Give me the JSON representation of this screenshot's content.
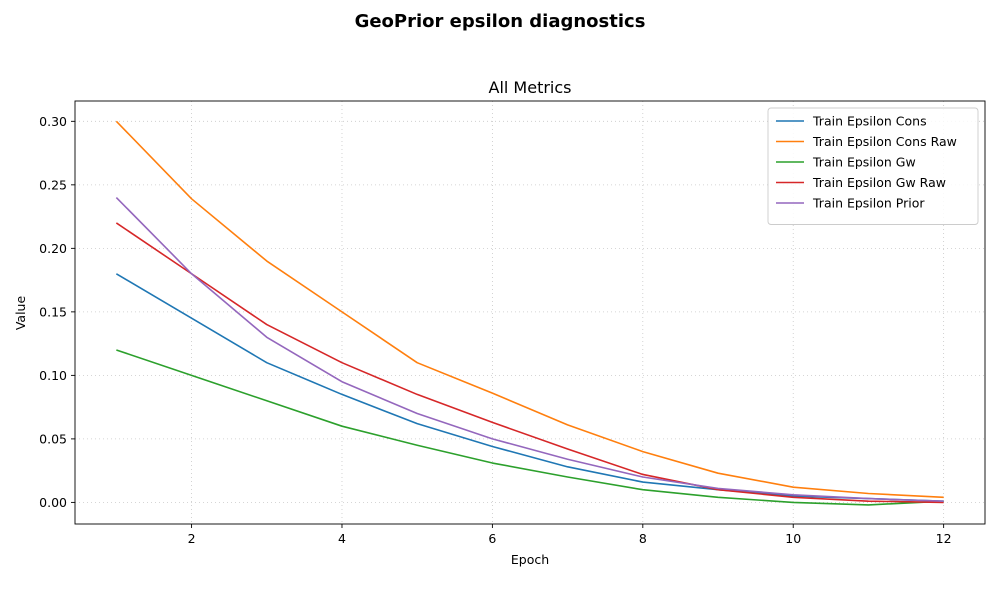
{
  "figure": {
    "suptitle": "GeoPrior epsilon diagnostics"
  },
  "chart_data": {
    "type": "line",
    "title": "All Metrics",
    "xlabel": "Epoch",
    "ylabel": "Value",
    "xlim": [
      0.45,
      12.55
    ],
    "ylim": [
      -0.017,
      0.316
    ],
    "xticks": [
      2,
      4,
      6,
      8,
      10,
      12
    ],
    "xtick_labels": [
      "2",
      "4",
      "6",
      "8",
      "10",
      "12"
    ],
    "yticks": [
      0.0,
      0.05,
      0.1,
      0.15,
      0.2,
      0.25,
      0.3
    ],
    "ytick_labels": [
      "0.00",
      "0.05",
      "0.10",
      "0.15",
      "0.20",
      "0.25",
      "0.30"
    ],
    "grid": true,
    "legend_position": "top-right",
    "x": [
      1,
      2,
      3,
      4,
      5,
      6,
      7,
      8,
      9,
      10,
      11,
      12
    ],
    "series": [
      {
        "name": "Train Epsilon Cons",
        "color": "#1f77b4",
        "values": [
          0.18,
          0.145,
          0.11,
          0.085,
          0.062,
          0.044,
          0.028,
          0.016,
          0.01,
          0.005,
          0.003,
          0.001
        ]
      },
      {
        "name": "Train Epsilon Cons Raw",
        "color": "#ff7f0e",
        "values": [
          0.3,
          0.239,
          0.19,
          0.15,
          0.11,
          0.086,
          0.061,
          0.04,
          0.023,
          0.012,
          0.007,
          0.004
        ]
      },
      {
        "name": "Train Epsilon Gw",
        "color": "#2ca02c",
        "values": [
          0.12,
          0.1,
          0.08,
          0.06,
          0.045,
          0.031,
          0.02,
          0.01,
          0.004,
          0.0,
          -0.002,
          0.001
        ]
      },
      {
        "name": "Train Epsilon Gw Raw",
        "color": "#d62728",
        "values": [
          0.22,
          0.18,
          0.14,
          0.11,
          0.085,
          0.063,
          0.042,
          0.022,
          0.01,
          0.004,
          0.001,
          0.0
        ]
      },
      {
        "name": "Train Epsilon Prior",
        "color": "#9467bd",
        "values": [
          0.24,
          0.18,
          0.13,
          0.095,
          0.07,
          0.05,
          0.034,
          0.02,
          0.011,
          0.006,
          0.003,
          0.001
        ]
      }
    ]
  }
}
